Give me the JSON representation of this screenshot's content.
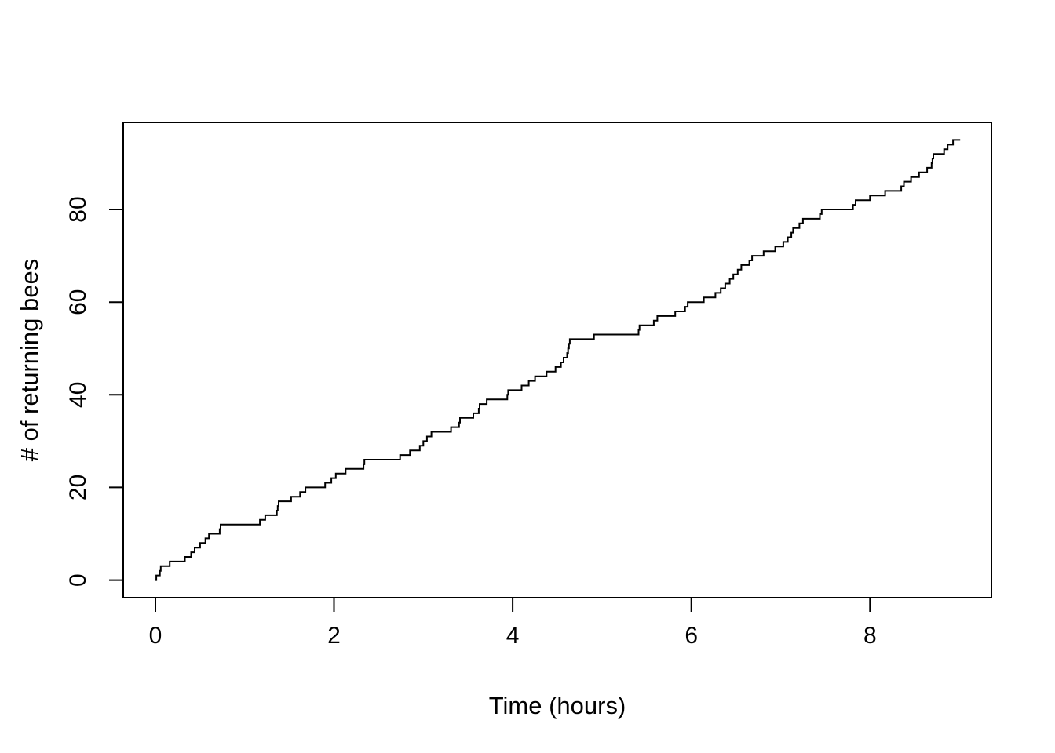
{
  "chart_data": {
    "type": "line",
    "style": "step-post",
    "title": "",
    "xlabel": "Time (hours)",
    "ylabel": "# of returning bees",
    "x_ticks": [
      0,
      2,
      4,
      6,
      8
    ],
    "y_ticks": [
      0,
      20,
      40,
      60,
      80
    ],
    "xlim": [
      -0.36,
      9.36
    ],
    "ylim": [
      -3.8,
      98.8
    ],
    "grid": false,
    "legend": false,
    "line_color": "#000000",
    "axis_color": "#000000",
    "background": "#ffffff",
    "description": "Cumulative number of returning bees over time: a step function starting at (0,0) and ending at 95 bees at about t = 9.0 hours, with notable plateaus at counts 12 (t 0.73-1.17), 26 (t 2.34-2.74), 53 (t 4.92-5.41) and 80 (t 7.46-7.81).",
    "series": [
      {
        "name": "cumulative returning bees",
        "start": {
          "t": 0,
          "count": 0
        },
        "arrival_times": [
          0.01,
          0.05,
          0.06,
          0.16,
          0.33,
          0.4,
          0.44,
          0.5,
          0.56,
          0.6,
          0.72,
          0.73,
          1.17,
          1.23,
          1.36,
          1.37,
          1.38,
          1.52,
          1.62,
          1.68,
          1.9,
          1.97,
          2.02,
          2.13,
          2.33,
          2.34,
          2.74,
          2.85,
          2.96,
          3.0,
          3.04,
          3.09,
          3.31,
          3.4,
          3.41,
          3.56,
          3.62,
          3.63,
          3.71,
          3.94,
          3.95,
          4.1,
          4.18,
          4.25,
          4.38,
          4.48,
          4.54,
          4.57,
          4.61,
          4.62,
          4.63,
          4.64,
          4.91,
          5.41,
          5.42,
          5.58,
          5.62,
          5.82,
          5.93,
          5.96,
          6.14,
          6.27,
          6.33,
          6.38,
          6.43,
          6.47,
          6.52,
          6.56,
          6.65,
          6.68,
          6.81,
          6.94,
          7.03,
          7.08,
          7.12,
          7.14,
          7.21,
          7.25,
          7.44,
          7.46,
          7.81,
          7.84,
          8.0,
          8.17,
          8.35,
          8.38,
          8.46,
          8.55,
          8.64,
          8.69,
          8.7,
          8.71,
          8.83,
          8.87,
          8.93
        ],
        "end_time": 9.01,
        "final_count": 95
      }
    ]
  }
}
